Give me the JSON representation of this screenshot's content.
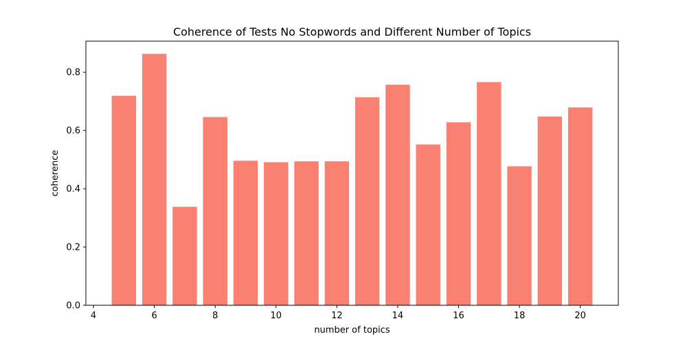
{
  "chart_data": {
    "type": "bar",
    "title": "Coherence of Tests No Stopwords and Different Number of Topics",
    "xlabel": "number of topics",
    "ylabel": "coherence",
    "x": [
      5,
      6,
      7,
      8,
      9,
      10,
      11,
      12,
      13,
      14,
      15,
      16,
      17,
      18,
      19,
      20
    ],
    "values": [
      0.719,
      0.863,
      0.338,
      0.646,
      0.496,
      0.491,
      0.494,
      0.494,
      0.714,
      0.757,
      0.552,
      0.628,
      0.766,
      0.477,
      0.648,
      0.679
    ],
    "xlim": [
      3.75,
      21.25
    ],
    "ylim": [
      0,
      0.9065
    ],
    "xticks": [
      4,
      6,
      8,
      10,
      12,
      14,
      16,
      18,
      20
    ],
    "yticks": [
      0.0,
      0.2,
      0.4,
      0.6,
      0.8
    ],
    "bar_color": "#fa8072",
    "grid": false,
    "legend": "none"
  }
}
